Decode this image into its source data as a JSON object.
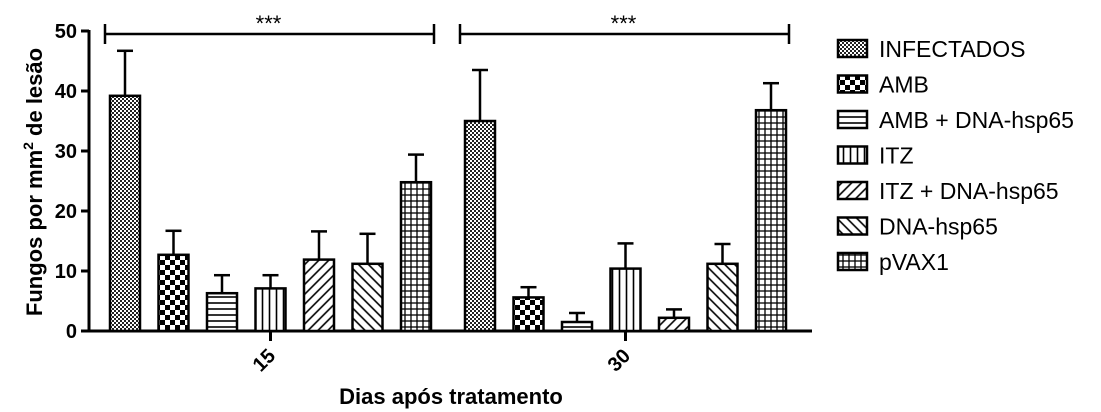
{
  "chart_data": {
    "type": "bar",
    "categories": [
      "15",
      "30"
    ],
    "series": [
      {
        "name": "INFECTADOS",
        "pattern": "dots",
        "values": [
          39.2,
          35.0
        ],
        "errors": [
          7.5,
          8.5
        ]
      },
      {
        "name": "AMB",
        "pattern": "checker",
        "values": [
          12.7,
          5.6
        ],
        "errors": [
          4.0,
          1.7
        ]
      },
      {
        "name": "AMB + DNA-hsp65",
        "pattern": "hlines",
        "values": [
          6.3,
          1.5
        ],
        "errors": [
          3.0,
          1.5
        ]
      },
      {
        "name": "ITZ",
        "pattern": "vlines",
        "values": [
          7.1,
          10.4
        ],
        "errors": [
          2.2,
          4.2
        ]
      },
      {
        "name": "ITZ + DNA-hsp65",
        "pattern": "diag-up",
        "values": [
          11.9,
          2.2
        ],
        "errors": [
          4.7,
          1.4
        ]
      },
      {
        "name": "DNA-hsp65",
        "pattern": "diag-down",
        "values": [
          11.2,
          11.2
        ],
        "errors": [
          5.0,
          3.3
        ]
      },
      {
        "name": "pVAX1",
        "pattern": "grid",
        "values": [
          24.8,
          36.8
        ],
        "errors": [
          4.6,
          4.5
        ]
      }
    ],
    "ylabel_main": "Fungos por mm",
    "ylabel_sup": "2",
    "ylabel_rest": " de lesão",
    "xlabel": "Dias após tratamento",
    "ylim": [
      0,
      50
    ],
    "yticks": [
      "0",
      "10",
      "20",
      "30",
      "40",
      "50"
    ],
    "significance": [
      "***",
      "***"
    ],
    "legend_position": "right",
    "grid": false
  }
}
